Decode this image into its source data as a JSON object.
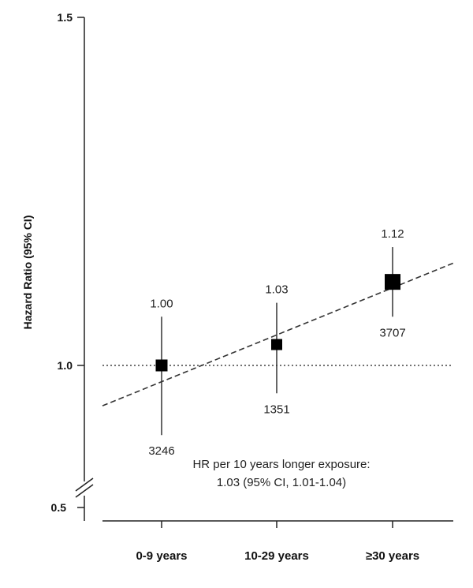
{
  "chart_data": {
    "type": "scatter",
    "ylabel": "Hazard Ratio (95% CI)",
    "xlabel": "",
    "ylim": [
      0.5,
      1.5
    ],
    "y_ticks": [
      "1.5",
      "1.0",
      "0.5"
    ],
    "y_axis_break": true,
    "categories": [
      "0-9 years",
      "10-29 years",
      "≥30 years"
    ],
    "series": [
      {
        "points": [
          {
            "category": "0-9 years",
            "hr": 1.0,
            "ci_low": 0.9,
            "ci_high": 1.07,
            "hr_label": "1.00",
            "n_label": "3246"
          },
          {
            "category": "10-29 years",
            "hr": 1.03,
            "ci_low": 0.96,
            "ci_high": 1.09,
            "hr_label": "1.03",
            "n_label": "1351"
          },
          {
            "category": "≥30 years",
            "hr": 1.12,
            "ci_low": 1.07,
            "ci_high": 1.17,
            "hr_label": "1.12",
            "n_label": "3707"
          }
        ]
      }
    ],
    "reference_line": 1.0,
    "trend_line": {
      "y_start": 0.942,
      "y_end": 1.147
    },
    "annotation": [
      "HR per 10 years longer exposure:",
      "1.03 (95% CI, 1.01-1.04)"
    ],
    "grid": false
  }
}
